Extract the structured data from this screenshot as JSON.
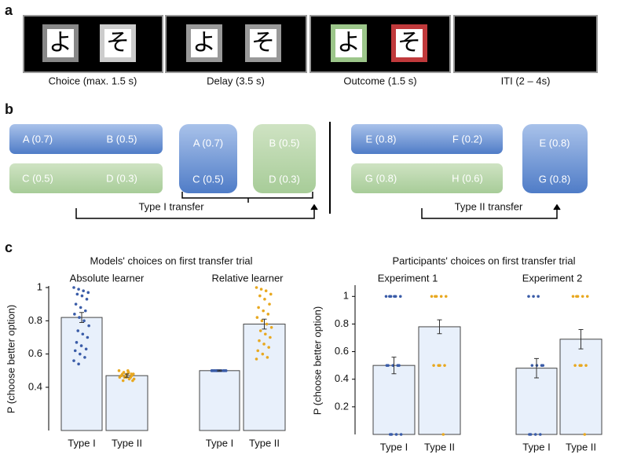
{
  "panel_a": {
    "label": "a",
    "frames": [
      {
        "caption": "Choice (max. 1.5 s)",
        "stimuli": [
          "よ",
          "そ"
        ]
      },
      {
        "caption": "Delay (3.5 s)",
        "stimuli": [
          "よ",
          "そ"
        ]
      },
      {
        "caption": "Outcome (1.5 s)",
        "stimuli": [
          "よ",
          "そ"
        ]
      },
      {
        "caption": "ITI (2 – 4s)"
      }
    ]
  },
  "panel_b": {
    "label": "b",
    "left": {
      "rows": [
        [
          "A (0.7)",
          "B (0.5)"
        ],
        [
          "C (0.5)",
          "D (0.3)"
        ]
      ],
      "transfer": [
        [
          "A (0.7)",
          "C (0.5)"
        ],
        [
          "B (0.5)",
          "D (0.3)"
        ]
      ],
      "caption": "Type I transfer"
    },
    "right": {
      "rows": [
        [
          "E (0.8)",
          "F (0.2)"
        ],
        [
          "G (0.8)",
          "H (0.6)"
        ]
      ],
      "transfer": [
        [
          "E (0.8)",
          "G (0.8)"
        ]
      ],
      "caption": "Type II transfer"
    }
  },
  "panel_c": {
    "label": "c"
  },
  "chart_data": [
    {
      "type": "bar",
      "title": "Models' choices on first transfer trial",
      "ylabel": "P (choose better option)",
      "ylim": [
        0.14,
        1
      ],
      "yticks": [
        0.4,
        0.6,
        0.8,
        1
      ],
      "bar_color": "#e8f0fb",
      "point_colors": [
        "#3a5ca8",
        "#e8a820"
      ],
      "groups": [
        {
          "label": "Absolute learner",
          "categories": [
            "Type I",
            "Type II"
          ],
          "values": [
            0.82,
            0.47
          ],
          "errors": [
            0.03,
            0.01
          ],
          "points": [
            [
              1,
              0.99,
              0.98,
              0.97,
              0.96,
              0.95,
              0.93,
              0.9,
              0.88,
              0.86,
              0.84,
              0.82,
              0.8,
              0.77,
              0.74,
              0.72,
              0.7,
              0.67,
              0.65,
              0.63,
              0.62,
              0.6,
              0.58,
              0.56,
              0.54
            ],
            [
              0.5,
              0.49,
              0.49,
              0.48,
              0.48,
              0.48,
              0.47,
              0.47,
              0.47,
              0.46,
              0.46,
              0.46,
              0.45,
              0.45,
              0.44,
              0.5,
              0.44,
              0.47,
              0.46,
              0.48
            ]
          ]
        },
        {
          "label": "Relative learner",
          "categories": [
            "Type I",
            "Type II"
          ],
          "values": [
            0.5,
            0.78
          ],
          "errors": [
            0.003,
            0.03
          ],
          "points": [
            [
              0.5,
              0.5,
              0.5,
              0.5,
              0.5,
              0.5,
              0.5,
              0.5,
              0.5,
              0.5,
              0.5,
              0.5
            ],
            [
              1,
              0.99,
              0.98,
              0.96,
              0.95,
              0.93,
              0.9,
              0.88,
              0.86,
              0.84,
              0.82,
              0.8,
              0.78,
              0.76,
              0.74,
              0.72,
              0.7,
              0.68,
              0.66,
              0.64,
              0.62,
              0.6,
              0.58,
              0.57
            ]
          ]
        }
      ]
    },
    {
      "type": "bar",
      "title": "Participants' choices on first transfer trial",
      "ylabel": "P (choose better option)",
      "ylim": [
        0,
        1.07
      ],
      "yticks": [
        0.2,
        0.4,
        0.6,
        0.8,
        1
      ],
      "bar_color": "#e8f0fb",
      "point_colors": [
        "#3a5ca8",
        "#e8a820"
      ],
      "groups": [
        {
          "label": "Experiment 1",
          "categories": [
            "Type I",
            "Type II"
          ],
          "values": [
            0.5,
            0.78
          ],
          "errors": [
            0.06,
            0.05
          ],
          "points": [
            [
              1,
              1,
              1,
              1,
              1,
              1,
              0.5,
              0.5,
              0.5,
              0.5,
              0.5,
              0,
              0,
              0,
              0
            ],
            [
              1,
              1,
              1,
              1,
              1,
              0.5,
              0.5,
              0.5,
              0.5,
              0
            ]
          ]
        },
        {
          "label": "Experiment 2",
          "categories": [
            "Type I",
            "Type II"
          ],
          "values": [
            0.48,
            0.69
          ],
          "errors": [
            0.07,
            0.07
          ],
          "points": [
            [
              1,
              1,
              1,
              0.5,
              0.5,
              0.5,
              0.5,
              0,
              0,
              0,
              0
            ],
            [
              1,
              1,
              1,
              1,
              1,
              0.5,
              0.5,
              0.5,
              0.5,
              0
            ]
          ]
        }
      ]
    }
  ]
}
